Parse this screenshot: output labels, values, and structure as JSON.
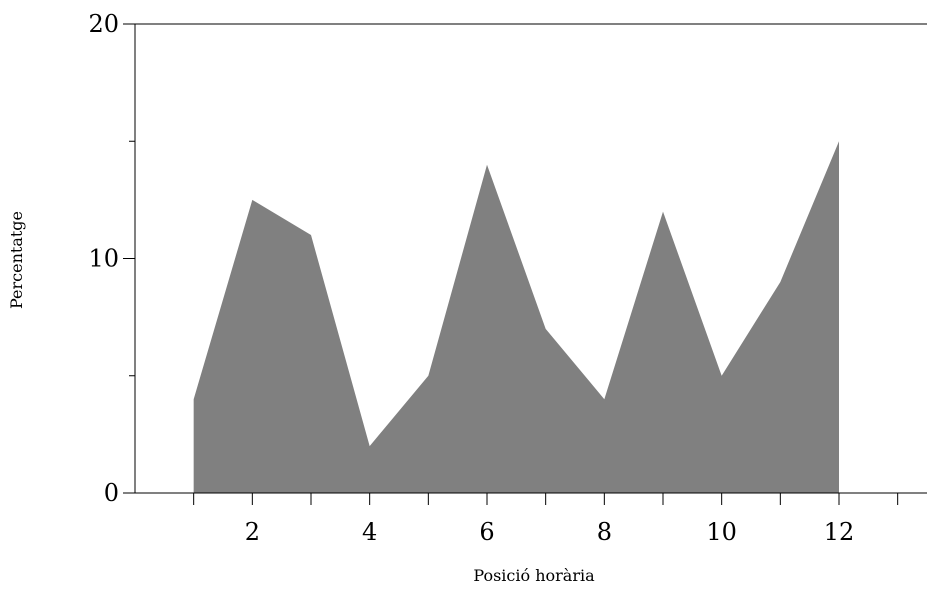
{
  "chart_data": {
    "type": "area",
    "title": "",
    "xlabel": "Posició horària",
    "ylabel": "Percentatge",
    "x": [
      1,
      2,
      3,
      4,
      5,
      6,
      7,
      8,
      9,
      10,
      11,
      12
    ],
    "series": [
      {
        "values": [
          4,
          12.5,
          11,
          2,
          5,
          14,
          7,
          4,
          12,
          5,
          9,
          15
        ]
      }
    ],
    "xlim": [
      0,
      13.5
    ],
    "ylim": [
      0,
      20
    ],
    "x_ticks": [
      1,
      2,
      3,
      4,
      5,
      6,
      7,
      8,
      9,
      10,
      11,
      12,
      13
    ],
    "x_tick_labels": [
      {
        "x": 2,
        "label": "2"
      },
      {
        "x": 4,
        "label": "4"
      },
      {
        "x": 6,
        "label": "6"
      },
      {
        "x": 8,
        "label": "8"
      },
      {
        "x": 10,
        "label": "10"
      },
      {
        "x": 12,
        "label": "12"
      }
    ],
    "y_ticks_major": [
      {
        "y": 0,
        "label": "0"
      },
      {
        "y": 10,
        "label": "10"
      },
      {
        "y": 20,
        "label": "20"
      }
    ],
    "y_ticks_minor": [
      5,
      15
    ],
    "fill_color": "#808080",
    "axis_color": "#000000",
    "grid": false,
    "legend": "none"
  }
}
